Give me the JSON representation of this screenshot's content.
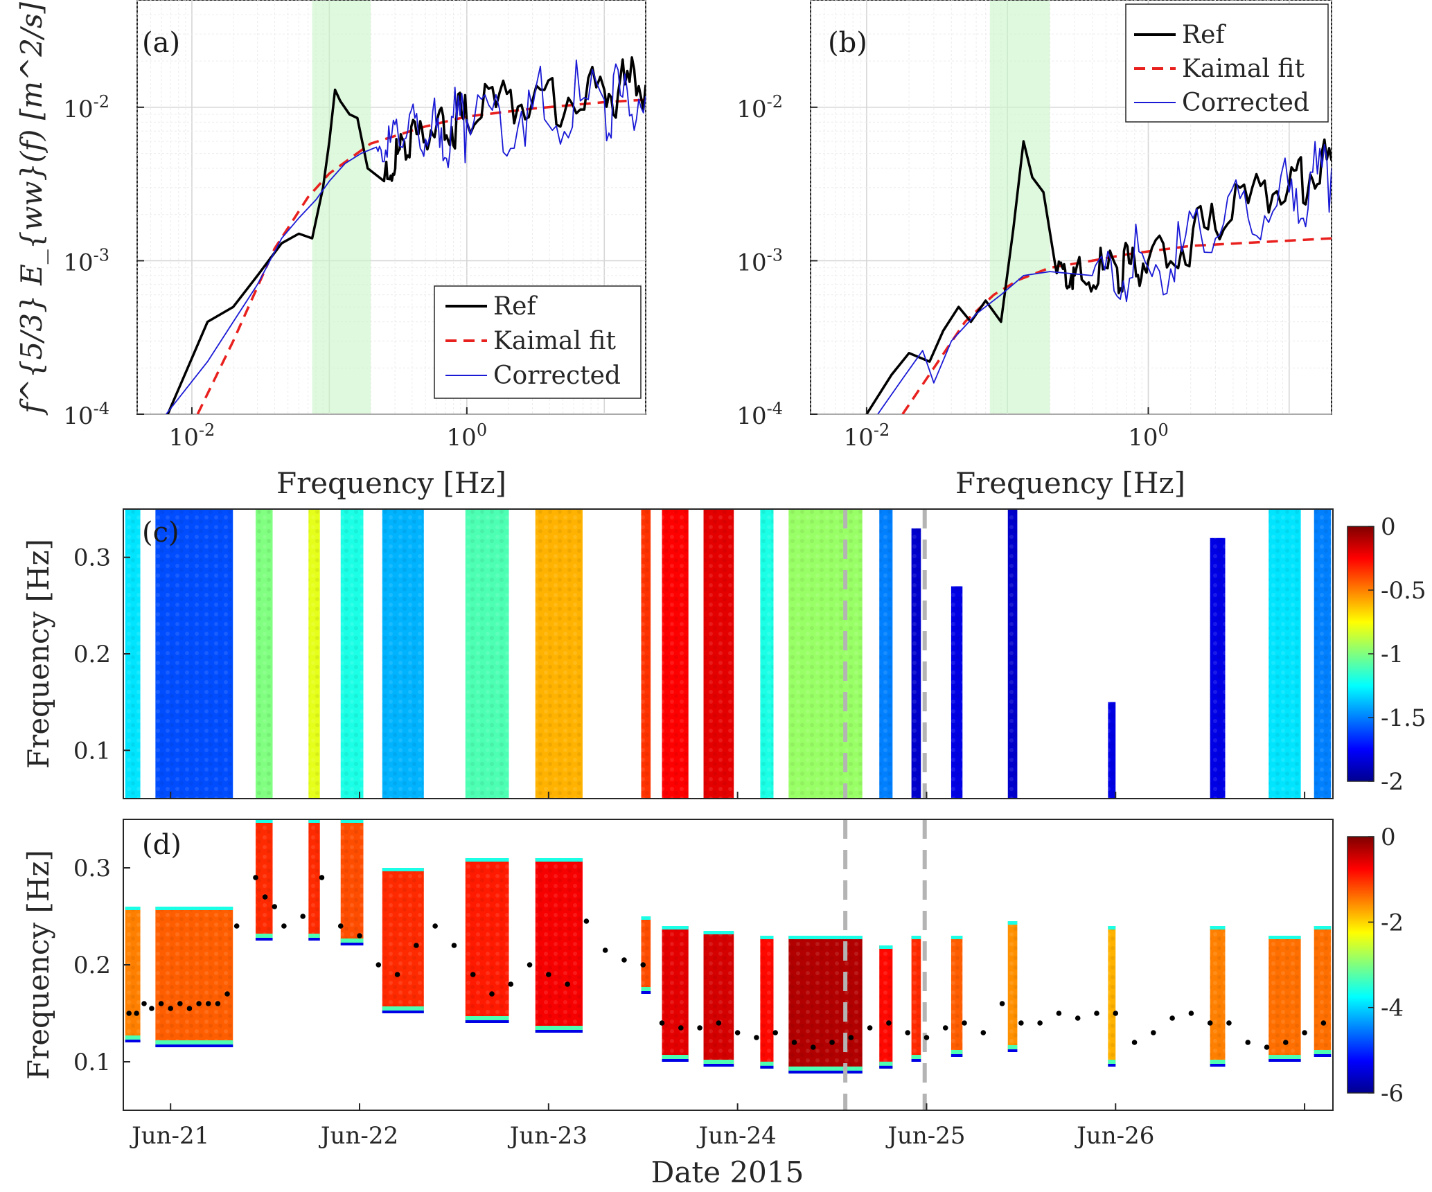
{
  "chart_data": [
    {
      "id": "a",
      "type": "line",
      "panel_label": "(a)",
      "xlabel": "Frequency [Hz]",
      "ylabel": "f^{5/3} E_{ww}(f) [m^2/s]",
      "xscale": "log",
      "yscale": "log",
      "xlim": [
        0.004,
        20
      ],
      "ylim": [
        0.0001,
        0.05
      ],
      "xticks": [
        {
          "v": 0.01,
          "base": "10",
          "exp": "-2"
        },
        {
          "v": 1,
          "base": "10",
          "exp": "0"
        }
      ],
      "yticks": [
        {
          "v": 0.0001,
          "base": "10",
          "exp": "-4"
        },
        {
          "v": 0.001,
          "base": "10",
          "exp": "-3"
        },
        {
          "v": 0.01,
          "base": "10",
          "exp": "-2"
        }
      ],
      "shaded_band": [
        0.075,
        0.2
      ],
      "legend": {
        "position": "bottom-right",
        "entries": [
          "Ref",
          "Kaimal fit",
          "Corrected"
        ]
      },
      "series": [
        {
          "name": "Ref",
          "color": "#000000",
          "style": "solid",
          "points": [
            [
              0.006,
              8e-05
            ],
            [
              0.013,
              0.0004
            ],
            [
              0.02,
              0.0005
            ],
            [
              0.03,
              0.0008
            ],
            [
              0.045,
              0.0013
            ],
            [
              0.06,
              0.0015
            ],
            [
              0.075,
              0.0014
            ],
            [
              0.09,
              0.003
            ],
            [
              0.1,
              0.006
            ],
            [
              0.11,
              0.013
            ],
            [
              0.12,
              0.011
            ],
            [
              0.14,
              0.009
            ],
            [
              0.16,
              0.0085
            ],
            [
              0.19,
              0.004
            ],
            [
              0.25,
              0.0033
            ],
            [
              0.35,
              0.006
            ],
            [
              0.6,
              0.0075
            ],
            [
              1,
              0.008
            ],
            [
              3,
              0.011
            ],
            [
              10,
              0.013
            ],
            [
              20,
              0.014
            ]
          ]
        },
        {
          "name": "Kaimal fit",
          "color": "#e8201e",
          "style": "dashed",
          "points": [
            [
              0.011,
              0.0001
            ],
            [
              0.02,
              0.0003
            ],
            [
              0.04,
              0.0012
            ],
            [
              0.07,
              0.0026
            ],
            [
              0.1,
              0.0037
            ],
            [
              0.2,
              0.0058
            ],
            [
              0.5,
              0.0075
            ],
            [
              1,
              0.0087
            ],
            [
              3,
              0.0098
            ],
            [
              10,
              0.0108
            ],
            [
              20,
              0.0112
            ]
          ]
        },
        {
          "name": "Corrected",
          "color": "#1a1ad6",
          "style": "solid",
          "points": [
            [
              0.0065,
              0.0001
            ],
            [
              0.013,
              0.00022
            ],
            [
              0.02,
              0.0004
            ],
            [
              0.03,
              0.0007
            ],
            [
              0.045,
              0.0014
            ],
            [
              0.06,
              0.0019
            ],
            [
              0.08,
              0.0025
            ],
            [
              0.1,
              0.0033
            ],
            [
              0.13,
              0.0043
            ],
            [
              0.17,
              0.005
            ],
            [
              0.22,
              0.0055
            ],
            [
              0.35,
              0.0062
            ],
            [
              0.6,
              0.0072
            ],
            [
              1,
              0.0083
            ],
            [
              3,
              0.0098
            ],
            [
              10,
              0.0112
            ],
            [
              20,
              0.0118
            ]
          ]
        }
      ]
    },
    {
      "id": "b",
      "type": "line",
      "panel_label": "(b)",
      "xlabel": "Frequency [Hz]",
      "ylabel": "",
      "xscale": "log",
      "yscale": "log",
      "xlim": [
        0.004,
        20
      ],
      "ylim": [
        0.0001,
        0.05
      ],
      "xticks": [
        {
          "v": 0.01,
          "base": "10",
          "exp": "-2"
        },
        {
          "v": 1,
          "base": "10",
          "exp": "0"
        }
      ],
      "yticks": [
        {
          "v": 0.0001,
          "base": "10",
          "exp": "-4"
        },
        {
          "v": 0.001,
          "base": "10",
          "exp": "-3"
        },
        {
          "v": 0.01,
          "base": "10",
          "exp": "-2"
        }
      ],
      "shaded_band": [
        0.075,
        0.2
      ],
      "legend": {
        "position": "top-right",
        "entries": [
          "Ref",
          "Kaimal fit",
          "Corrected"
        ]
      },
      "series": [
        {
          "name": "Ref",
          "color": "#000000",
          "style": "solid",
          "points": [
            [
              0.01,
              0.0001
            ],
            [
              0.015,
              0.00018
            ],
            [
              0.02,
              0.00025
            ],
            [
              0.028,
              0.00022
            ],
            [
              0.035,
              0.00035
            ],
            [
              0.045,
              0.0005
            ],
            [
              0.055,
              0.0004
            ],
            [
              0.07,
              0.00055
            ],
            [
              0.09,
              0.0004
            ],
            [
              0.11,
              0.0016
            ],
            [
              0.13,
              0.006
            ],
            [
              0.15,
              0.0035
            ],
            [
              0.18,
              0.0028
            ],
            [
              0.22,
              0.0009
            ],
            [
              0.3,
              0.0008
            ],
            [
              0.6,
              0.0009
            ],
            [
              1,
              0.001
            ],
            [
              3,
              0.0016
            ],
            [
              10,
              0.0032
            ],
            [
              20,
              0.0045
            ]
          ]
        },
        {
          "name": "Kaimal fit",
          "color": "#e8201e",
          "style": "dashed",
          "points": [
            [
              0.018,
              0.0001
            ],
            [
              0.03,
              0.0002
            ],
            [
              0.05,
              0.0004
            ],
            [
              0.08,
              0.0006
            ],
            [
              0.12,
              0.00075
            ],
            [
              0.2,
              0.0009
            ],
            [
              0.4,
              0.001
            ],
            [
              0.7,
              0.0011
            ],
            [
              1,
              0.00115
            ],
            [
              2,
              0.00125
            ],
            [
              20,
              0.0014
            ]
          ]
        },
        {
          "name": "Corrected",
          "color": "#1a1ad6",
          "style": "solid",
          "points": [
            [
              0.012,
              0.0001
            ],
            [
              0.018,
              0.00017
            ],
            [
              0.025,
              0.00026
            ],
            [
              0.03,
              0.00016
            ],
            [
              0.04,
              0.0003
            ],
            [
              0.06,
              0.00045
            ],
            [
              0.09,
              0.0006
            ],
            [
              0.13,
              0.0008
            ],
            [
              0.2,
              0.00085
            ],
            [
              0.4,
              0.0008
            ],
            [
              1,
              0.0009
            ],
            [
              3,
              0.0014
            ],
            [
              10,
              0.0028
            ],
            [
              20,
              0.004
            ]
          ]
        }
      ]
    },
    {
      "id": "c",
      "type": "heatmap",
      "panel_label": "(c)",
      "ylabel": "Frequency [Hz]",
      "ylim": [
        0.05,
        0.35
      ],
      "yticks": [
        "0.1",
        "0.2",
        "0.3"
      ],
      "xlim_days": [
        20.75,
        27.15
      ],
      "colorbar": {
        "min": -2,
        "max": 0,
        "ticks": [
          "0",
          "-0.5",
          "-1",
          "-1.5",
          "-2"
        ]
      },
      "vlines_days": [
        24.57,
        24.99
      ],
      "columns": [
        {
          "t0": 20.76,
          "t1": 20.84,
          "v": -1.3,
          "fmin": 0.05,
          "fmax": 0.35
        },
        {
          "t0": 20.92,
          "t1": 21.33,
          "v": -1.6,
          "fmin": 0.05,
          "fmax": 0.35
        },
        {
          "t0": 21.45,
          "t1": 21.54,
          "v": -1.0,
          "fmin": 0.05,
          "fmax": 0.35
        },
        {
          "t0": 21.73,
          "t1": 21.79,
          "v": -0.8,
          "fmin": 0.05,
          "fmax": 0.35
        },
        {
          "t0": 21.9,
          "t1": 22.02,
          "v": -1.2,
          "fmin": 0.05,
          "fmax": 0.35
        },
        {
          "t0": 22.12,
          "t1": 22.34,
          "v": -1.4,
          "fmin": 0.05,
          "fmax": 0.35
        },
        {
          "t0": 22.56,
          "t1": 22.79,
          "v": -1.1,
          "fmin": 0.05,
          "fmax": 0.35
        },
        {
          "t0": 22.93,
          "t1": 23.18,
          "v": -0.6,
          "fmin": 0.05,
          "fmax": 0.35
        },
        {
          "t0": 23.49,
          "t1": 23.54,
          "v": -0.35,
          "fmin": 0.05,
          "fmax": 0.35
        },
        {
          "t0": 23.6,
          "t1": 23.74,
          "v": -0.25,
          "fmin": 0.05,
          "fmax": 0.35
        },
        {
          "t0": 23.82,
          "t1": 23.98,
          "v": -0.2,
          "fmin": 0.05,
          "fmax": 0.35
        },
        {
          "t0": 24.12,
          "t1": 24.19,
          "v": -1.2,
          "fmin": 0.05,
          "fmax": 0.35
        },
        {
          "t0": 24.27,
          "t1": 24.66,
          "v": -0.95,
          "fmin": 0.05,
          "fmax": 0.35
        },
        {
          "t0": 24.75,
          "t1": 24.82,
          "v": -1.5,
          "fmin": 0.05,
          "fmax": 0.35
        },
        {
          "t0": 24.92,
          "t1": 24.97,
          "v": -1.85,
          "fmin": 0.05,
          "fmax": 0.33
        },
        {
          "t0": 25.13,
          "t1": 25.19,
          "v": -1.8,
          "fmin": 0.05,
          "fmax": 0.27
        },
        {
          "t0": 25.43,
          "t1": 25.48,
          "v": -1.85,
          "fmin": 0.05,
          "fmax": 0.35
        },
        {
          "t0": 25.96,
          "t1": 26.0,
          "v": -1.8,
          "fmin": 0.05,
          "fmax": 0.15
        },
        {
          "t0": 26.5,
          "t1": 26.58,
          "v": -1.8,
          "fmin": 0.05,
          "fmax": 0.32
        },
        {
          "t0": 26.81,
          "t1": 26.98,
          "v": -1.3,
          "fmin": 0.05,
          "fmax": 0.35
        },
        {
          "t0": 27.05,
          "t1": 27.14,
          "v": -1.5,
          "fmin": 0.05,
          "fmax": 0.35
        }
      ]
    },
    {
      "id": "d",
      "type": "heatmap",
      "panel_label": "(d)",
      "ylabel": "Frequency [Hz]",
      "xlabel": "Date 2015",
      "ylim": [
        0.05,
        0.35
      ],
      "yticks": [
        "0.1",
        "0.2",
        "0.3"
      ],
      "xlim_days": [
        20.75,
        27.15
      ],
      "xticks": [
        {
          "day": 21.0,
          "label": "Jun-21"
        },
        {
          "day": 22.0,
          "label": "Jun-22"
        },
        {
          "day": 23.0,
          "label": "Jun-23"
        },
        {
          "day": 24.0,
          "label": "Jun-24"
        },
        {
          "day": 25.0,
          "label": "Jun-25"
        },
        {
          "day": 26.0,
          "label": "Jun-26"
        }
      ],
      "colorbar": {
        "min": -6,
        "max": 0,
        "ticks": [
          "0",
          "-2",
          "-4",
          "-6"
        ]
      },
      "vlines_days": [
        24.57,
        24.99
      ],
      "columns": [
        {
          "t0": 20.76,
          "t1": 20.84,
          "v": -1.5,
          "fmin": 0.12,
          "fmax": 0.26
        },
        {
          "t0": 20.92,
          "t1": 21.33,
          "v": -1.3,
          "fmin": 0.115,
          "fmax": 0.26
        },
        {
          "t0": 21.45,
          "t1": 21.54,
          "v": -1.0,
          "fmin": 0.225,
          "fmax": 0.35
        },
        {
          "t0": 21.73,
          "t1": 21.79,
          "v": -1.0,
          "fmin": 0.225,
          "fmax": 0.35
        },
        {
          "t0": 21.9,
          "t1": 22.02,
          "v": -1.2,
          "fmin": 0.22,
          "fmax": 0.35
        },
        {
          "t0": 22.12,
          "t1": 22.34,
          "v": -1.0,
          "fmin": 0.15,
          "fmax": 0.3
        },
        {
          "t0": 22.56,
          "t1": 22.79,
          "v": -0.9,
          "fmin": 0.14,
          "fmax": 0.31
        },
        {
          "t0": 22.93,
          "t1": 23.18,
          "v": -0.7,
          "fmin": 0.13,
          "fmax": 0.31
        },
        {
          "t0": 23.49,
          "t1": 23.54,
          "v": -1.2,
          "fmin": 0.17,
          "fmax": 0.25
        },
        {
          "t0": 23.6,
          "t1": 23.74,
          "v": -0.6,
          "fmin": 0.1,
          "fmax": 0.24
        },
        {
          "t0": 23.82,
          "t1": 23.98,
          "v": -0.5,
          "fmin": 0.095,
          "fmax": 0.235
        },
        {
          "t0": 24.12,
          "t1": 24.19,
          "v": -0.8,
          "fmin": 0.093,
          "fmax": 0.23
        },
        {
          "t0": 24.27,
          "t1": 24.66,
          "v": -0.3,
          "fmin": 0.088,
          "fmax": 0.23
        },
        {
          "t0": 24.75,
          "t1": 24.82,
          "v": -0.8,
          "fmin": 0.093,
          "fmax": 0.22
        },
        {
          "t0": 24.92,
          "t1": 24.97,
          "v": -1.0,
          "fmin": 0.1,
          "fmax": 0.23
        },
        {
          "t0": 25.13,
          "t1": 25.19,
          "v": -1.3,
          "fmin": 0.105,
          "fmax": 0.23
        },
        {
          "t0": 25.43,
          "t1": 25.48,
          "v": -1.6,
          "fmin": 0.11,
          "fmax": 0.245
        },
        {
          "t0": 25.96,
          "t1": 26.0,
          "v": -1.8,
          "fmin": 0.095,
          "fmax": 0.24
        },
        {
          "t0": 26.5,
          "t1": 26.58,
          "v": -1.5,
          "fmin": 0.095,
          "fmax": 0.24
        },
        {
          "t0": 26.81,
          "t1": 26.98,
          "v": -1.4,
          "fmin": 0.1,
          "fmax": 0.23
        },
        {
          "t0": 27.05,
          "t1": 27.14,
          "v": -1.4,
          "fmin": 0.105,
          "fmax": 0.24
        }
      ],
      "peak_frequency": {
        "days": [
          20.78,
          20.82,
          20.86,
          20.9,
          20.95,
          21.0,
          21.05,
          21.1,
          21.15,
          21.2,
          21.25,
          21.3,
          21.35,
          21.45,
          21.5,
          21.55,
          21.6,
          21.7,
          21.8,
          21.9,
          22.0,
          22.1,
          22.2,
          22.3,
          22.4,
          22.5,
          22.6,
          22.7,
          22.8,
          22.9,
          23.0,
          23.1,
          23.2,
          23.3,
          23.4,
          23.5,
          23.6,
          23.7,
          23.8,
          23.9,
          24.0,
          24.1,
          24.2,
          24.3,
          24.4,
          24.5,
          24.6,
          24.7,
          24.8,
          24.9,
          25.0,
          25.1,
          25.2,
          25.3,
          25.4,
          25.5,
          25.6,
          25.7,
          25.8,
          25.9,
          26.0,
          26.1,
          26.2,
          26.3,
          26.4,
          26.5,
          26.6,
          26.7,
          26.8,
          26.9,
          27.0,
          27.1
        ],
        "values": [
          0.15,
          0.15,
          0.16,
          0.155,
          0.16,
          0.155,
          0.16,
          0.155,
          0.16,
          0.16,
          0.16,
          0.17,
          0.24,
          0.29,
          0.27,
          0.26,
          0.24,
          0.25,
          0.29,
          0.24,
          0.23,
          0.2,
          0.19,
          0.22,
          0.24,
          0.22,
          0.19,
          0.17,
          0.18,
          0.2,
          0.19,
          0.18,
          0.245,
          0.215,
          0.205,
          0.2,
          0.14,
          0.135,
          0.135,
          0.14,
          0.13,
          0.125,
          0.13,
          0.12,
          0.115,
          0.12,
          0.125,
          0.135,
          0.14,
          0.13,
          0.125,
          0.135,
          0.14,
          0.13,
          0.16,
          0.14,
          0.14,
          0.15,
          0.145,
          0.15,
          0.15,
          0.12,
          0.13,
          0.145,
          0.15,
          0.14,
          0.14,
          0.12,
          0.115,
          0.12,
          0.13,
          0.14
        ]
      }
    }
  ]
}
